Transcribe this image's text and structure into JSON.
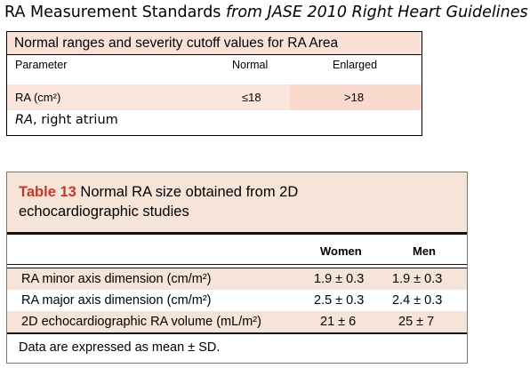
{
  "heading": {
    "main": "RA Measurement Standards ",
    "italic": "from JASE 2010 Right Heart Guidelines"
  },
  "table1": {
    "title": "Normal ranges and severity cutoff values for RA Area",
    "headers": [
      "Parameter",
      "Normal",
      "Enlarged"
    ],
    "row": {
      "parameter": "RA (cm²)",
      "normal": "≤18",
      "enlarged": ">18"
    },
    "footnote": {
      "abbr": "RA",
      "text": ", right atrium"
    },
    "colors": {
      "title_bg": "#f9e1d8",
      "row_bg": "#fbe6dd"
    }
  },
  "table2": {
    "label": "Table 13",
    "title_rest": " Normal RA size obtained from 2D",
    "title_line2": "echocardiographic studies",
    "headers": [
      "Women",
      "Men"
    ],
    "rows": [
      {
        "label": "RA minor axis dimension (cm/m²)",
        "women": "1.9 ± 0.3",
        "men": "1.9 ± 0.3"
      },
      {
        "label": "RA major axis dimension (cm/m²)",
        "women": "2.5 ± 0.3",
        "men": "2.4 ± 0.3"
      },
      {
        "label": "2D echocardiographic RA volume (mL/m²)",
        "women": "21 ± 6",
        "men": "25 ± 7"
      }
    ],
    "footnote": "Data are expressed as mean ± SD.",
    "colors": {
      "label": "#c0392b",
      "band_bg": "#f7e4d8"
    }
  }
}
